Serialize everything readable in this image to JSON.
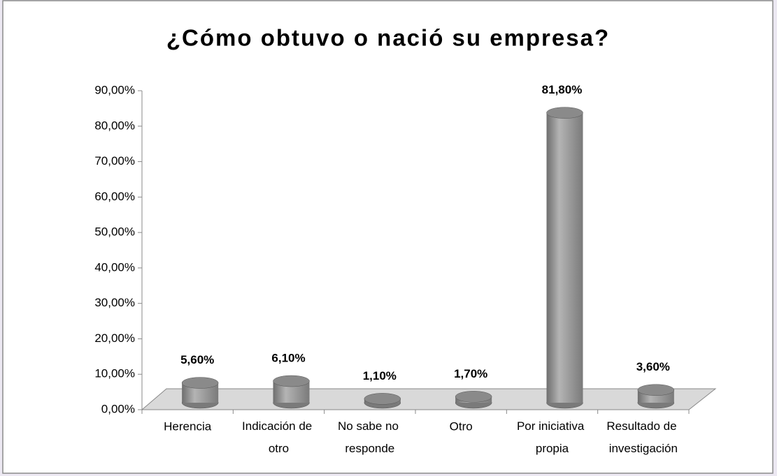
{
  "chart_data": {
    "type": "bar3d",
    "title": "¿Cómo obtuvo o nació su empresa?",
    "categories": [
      "Herencia",
      "Indicación de otro",
      "No sabe no responde",
      "Otro",
      "Por iniciativa propia",
      "Resultado de investigación"
    ],
    "values": [
      5.6,
      6.1,
      1.1,
      1.7,
      81.8,
      3.6
    ],
    "value_labels": [
      "5,60%",
      "6,10%",
      "1,10%",
      "1,70%",
      "81,80%",
      "3,60%"
    ],
    "color": "#8c8c8c",
    "ylim": [
      0,
      90
    ],
    "yticks": [
      {
        "value": 0,
        "label": "0,00%"
      },
      {
        "value": 10,
        "label": "10,00%"
      },
      {
        "value": 20,
        "label": "20,00%"
      },
      {
        "value": 30,
        "label": "30,00%"
      },
      {
        "value": 40,
        "label": "40,00%"
      },
      {
        "value": 50,
        "label": "50,00%"
      },
      {
        "value": 60,
        "label": "60,00%"
      },
      {
        "value": 70,
        "label": "70,00%"
      },
      {
        "value": 80,
        "label": "80,00%"
      },
      {
        "value": 90,
        "label": "90,00%"
      }
    ]
  }
}
